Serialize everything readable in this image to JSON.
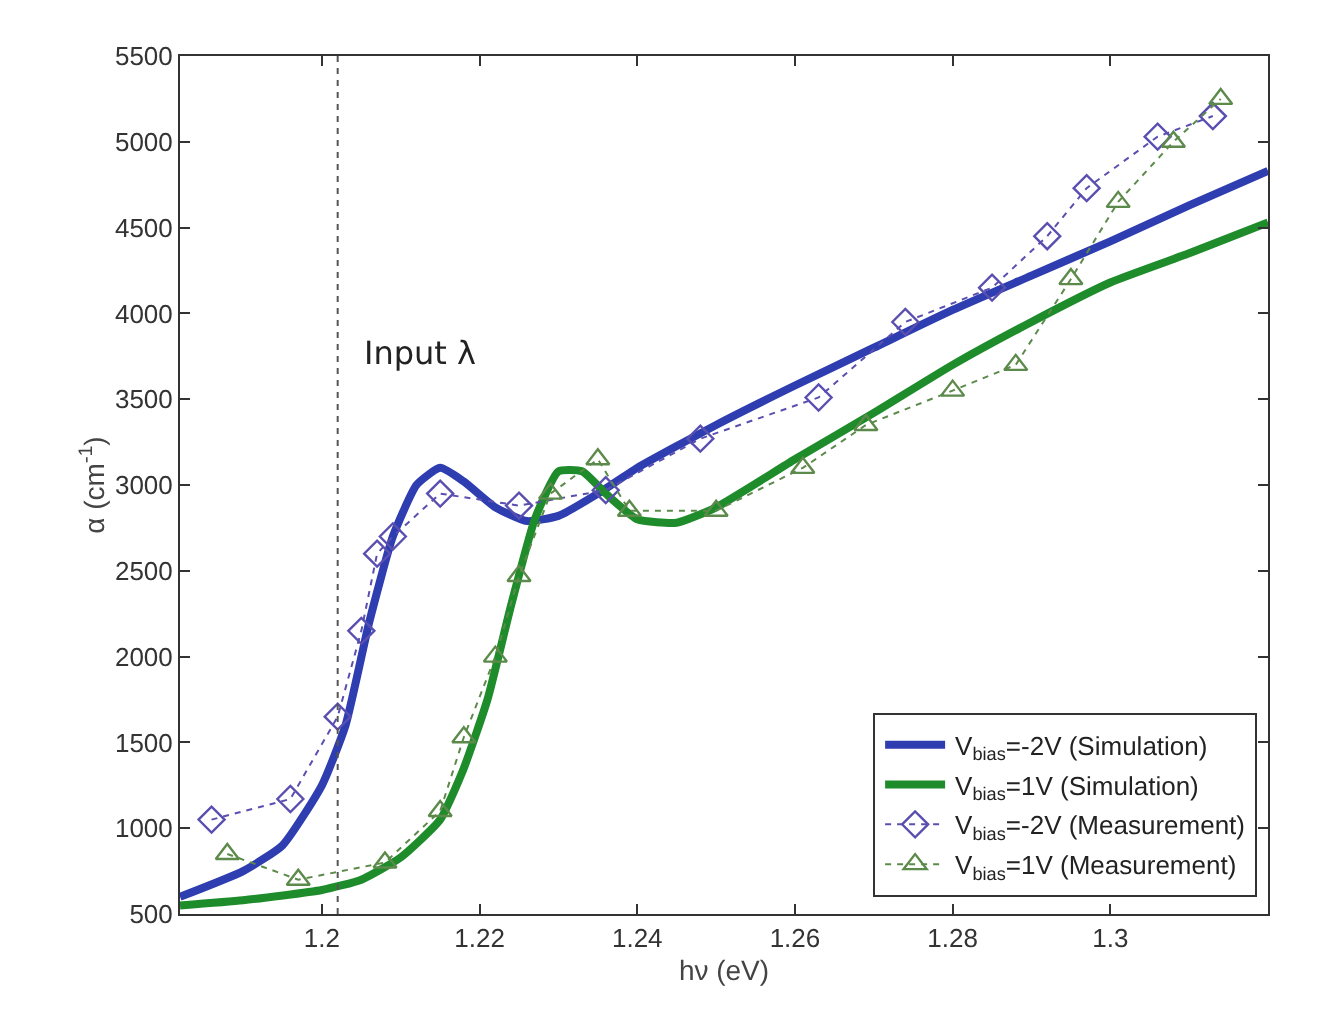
{
  "chart_data": {
    "type": "line",
    "xlabel": "hν (eV)",
    "ylabel": "α (cm$^{-1}$)",
    "xlim": [
      1.182,
      1.32
    ],
    "ylim": [
      500,
      5500
    ],
    "xticks": [
      1.2,
      1.22,
      1.24,
      1.26,
      1.28,
      1.3
    ],
    "yticks": [
      500,
      1000,
      1500,
      2000,
      2500,
      3000,
      3500,
      4000,
      4500,
      5000,
      5500
    ],
    "grid": false,
    "legend": "bottom right",
    "series": [
      {
        "name": "V$_{bias}$=-2V (Simulation)",
        "color": "#2e3db0",
        "marker": "none",
        "line_style": "solid",
        "x": [
          1.182,
          1.19,
          1.195,
          1.2,
          1.203,
          1.206,
          1.209,
          1.212,
          1.215,
          1.218,
          1.222,
          1.226,
          1.23,
          1.235,
          1.24,
          1.25,
          1.26,
          1.27,
          1.28,
          1.29,
          1.3,
          1.31,
          1.32
        ],
        "values": [
          600,
          750,
          900,
          1250,
          1600,
          2200,
          2700,
          3000,
          3100,
          3020,
          2870,
          2790,
          2820,
          2950,
          3100,
          3350,
          3580,
          3800,
          4020,
          4220,
          4420,
          4630,
          4830
        ]
      },
      {
        "name": "V$_{bias}$=1V (Simulation)",
        "color": "#1e8c2a",
        "marker": "none",
        "line_style": "solid",
        "x": [
          1.182,
          1.19,
          1.2,
          1.205,
          1.21,
          1.215,
          1.218,
          1.221,
          1.224,
          1.227,
          1.23,
          1.233,
          1.236,
          1.24,
          1.245,
          1.25,
          1.26,
          1.27,
          1.28,
          1.29,
          1.3,
          1.31,
          1.32
        ],
        "values": [
          550,
          580,
          640,
          700,
          830,
          1050,
          1350,
          1750,
          2300,
          2800,
          3080,
          3080,
          2950,
          2800,
          2780,
          2870,
          3150,
          3420,
          3700,
          3950,
          4180,
          4350,
          4530
        ]
      },
      {
        "name": "V$_{bias}$=-2V (Measurement)",
        "color": "#5a4fb0",
        "marker": "diamond",
        "line_style": "dotted",
        "x": [
          1.186,
          1.196,
          1.202,
          1.205,
          1.207,
          1.209,
          1.215,
          1.225,
          1.236,
          1.248,
          1.263,
          1.274,
          1.285,
          1.292,
          1.297,
          1.306,
          1.313
        ],
        "values": [
          1050,
          1170,
          1650,
          2150,
          2600,
          2700,
          2950,
          2880,
          2970,
          3270,
          3510,
          3950,
          4150,
          4450,
          4730,
          5030,
          5150
        ]
      },
      {
        "name": "V$_{bias}$=1V (Measurement)",
        "color": "#5c8a4a",
        "marker": "triangle",
        "line_style": "dotted",
        "x": [
          1.188,
          1.197,
          1.208,
          1.215,
          1.218,
          1.222,
          1.225,
          1.229,
          1.235,
          1.239,
          1.25,
          1.261,
          1.269,
          1.28,
          1.288,
          1.295,
          1.301,
          1.308,
          1.314
        ],
        "values": [
          850,
          700,
          800,
          1100,
          1530,
          2000,
          2470,
          2950,
          3150,
          2850,
          2850,
          3100,
          3350,
          3550,
          3700,
          4200,
          4650,
          5000,
          5250
        ]
      }
    ],
    "ref_lines": [
      {
        "axis": "x",
        "value": 1.202,
        "color": "#555555",
        "line_style": "dotted"
      }
    ],
    "annotations": [
      "Input λ"
    ]
  }
}
